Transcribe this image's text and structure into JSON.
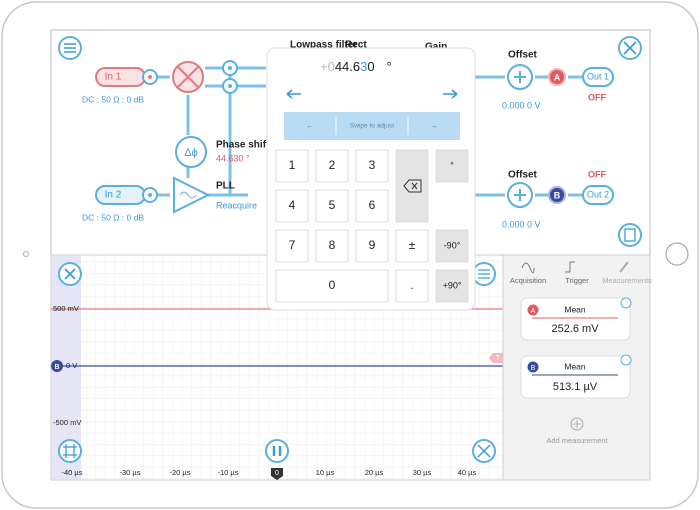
{
  "diagram": {
    "labels": {
      "lowpass": "Lowpass filter",
      "rect": "Rect",
      "gain": "Gain"
    },
    "in1": {
      "label": "In 1",
      "setting": "DC : 50 Ω : 0 dB"
    },
    "in2": {
      "label": "In 2",
      "setting": "DC : 50 Ω : 0 dB"
    },
    "phase": {
      "label": "Phase shift",
      "value": "44.630 °"
    },
    "pll": {
      "label": "PLL",
      "action": "Reacquire"
    },
    "out1": {
      "offset": "Offset",
      "offset_value": "0.000 0 V",
      "channel": "A",
      "label": "Out 1",
      "state": "OFF"
    },
    "out2": {
      "offset": "Offset",
      "offset_value": "0.000 0 V",
      "channel": "B",
      "label": "Out 2",
      "state": "OFF"
    }
  },
  "keypad": {
    "display": {
      "dim": "+0",
      "before": "44.6",
      "cursor": "3",
      "after": "0",
      "unit": "°"
    },
    "hint": "Swipe to adjust",
    "keys": {
      "k1": "1",
      "k2": "2",
      "k3": "3",
      "k4": "4",
      "k5": "5",
      "k6": "6",
      "k7": "7",
      "k8": "8",
      "k9": "9",
      "k0": "0",
      "dot": ".",
      "sign": "±",
      "deg": "°",
      "minus90": "-90°",
      "plus90": "+90°"
    }
  },
  "plot": {
    "y_labels": [
      "500 mV",
      "0 V",
      "-500 mV"
    ],
    "x_labels": [
      "-40 µs",
      "-30 µs",
      "-20 µs",
      "-10 µs",
      "10 µs",
      "20 µs",
      "30 µs",
      "40 µs"
    ],
    "trace_marker": "B",
    "trigger_marker": "T",
    "time_marker": "0"
  },
  "panel": {
    "tabs": [
      "Acquisition",
      "Trigger",
      "Measurements"
    ],
    "measurements": [
      {
        "channel": "A",
        "name": "Mean",
        "value": "252.6 mV"
      },
      {
        "channel": "B",
        "name": "Mean",
        "value": "513.1 µV"
      }
    ],
    "add": "Add measurement"
  }
}
